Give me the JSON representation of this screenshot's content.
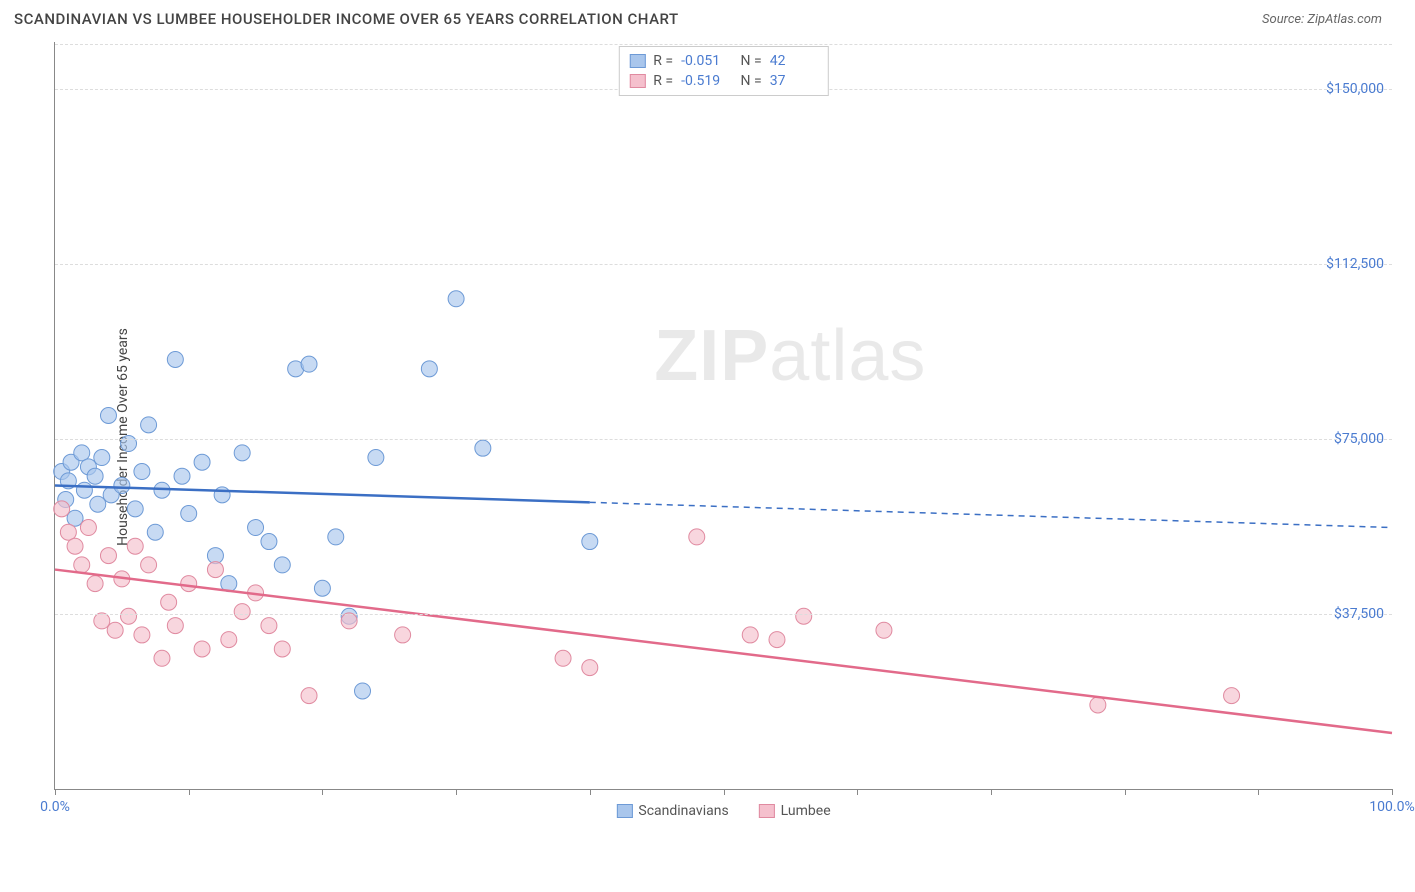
{
  "header": {
    "title": "SCANDINAVIAN VS LUMBEE HOUSEHOLDER INCOME OVER 65 YEARS CORRELATION CHART",
    "source": "Source: ZipAtlas.com"
  },
  "watermark": {
    "part1": "ZIP",
    "part2": "atlas"
  },
  "chart": {
    "type": "scatter",
    "ylabel": "Householder Income Over 65 years",
    "background_color": "#ffffff",
    "grid_color": "#dddddd",
    "axis_color": "#888888",
    "label_color": "#4a7bd0",
    "title_fontsize": 15,
    "label_fontsize": 14,
    "xlim": [
      0,
      100
    ],
    "ylim": [
      0,
      160000
    ],
    "xtick_positions": [
      0,
      10,
      20,
      30,
      40,
      50,
      60,
      70,
      80,
      90,
      100
    ],
    "xtick_labels_shown": {
      "0": "0.0%",
      "100": "100.0%"
    },
    "ytick_positions": [
      37500,
      75000,
      112500,
      150000
    ],
    "ytick_labels": [
      "$37,500",
      "$75,000",
      "$112,500",
      "$150,000"
    ],
    "series": [
      {
        "name": "Scandinavians",
        "marker_fill": "#a9c6ec",
        "marker_stroke": "#6d9ad6",
        "marker_opacity": 0.65,
        "marker_radius": 8,
        "line_color": "#3b6fc4",
        "line_width": 2.5,
        "r_value": "-0.051",
        "n_value": "42",
        "regression": {
          "x1_pct": 0,
          "y1": 65000,
          "x2_pct": 100,
          "y2": 56000,
          "solid_until_pct": 40
        },
        "points": [
          [
            0.5,
            68000
          ],
          [
            0.8,
            62000
          ],
          [
            1.0,
            66000
          ],
          [
            1.2,
            70000
          ],
          [
            1.5,
            58000
          ],
          [
            2.0,
            72000
          ],
          [
            2.2,
            64000
          ],
          [
            2.5,
            69000
          ],
          [
            3.0,
            67000
          ],
          [
            3.2,
            61000
          ],
          [
            3.5,
            71000
          ],
          [
            4.0,
            80000
          ],
          [
            4.2,
            63000
          ],
          [
            5.0,
            65000
          ],
          [
            5.5,
            74000
          ],
          [
            6.0,
            60000
          ],
          [
            6.5,
            68000
          ],
          [
            7.0,
            78000
          ],
          [
            7.5,
            55000
          ],
          [
            8.0,
            64000
          ],
          [
            9.0,
            92000
          ],
          [
            9.5,
            67000
          ],
          [
            10.0,
            59000
          ],
          [
            11.0,
            70000
          ],
          [
            12.0,
            50000
          ],
          [
            12.5,
            63000
          ],
          [
            13.0,
            44000
          ],
          [
            14.0,
            72000
          ],
          [
            15.0,
            56000
          ],
          [
            16.0,
            53000
          ],
          [
            17.0,
            48000
          ],
          [
            18.0,
            90000
          ],
          [
            19.0,
            91000
          ],
          [
            20.0,
            43000
          ],
          [
            21.0,
            54000
          ],
          [
            22.0,
            37000
          ],
          [
            23.0,
            21000
          ],
          [
            24.0,
            71000
          ],
          [
            28.0,
            90000
          ],
          [
            30.0,
            105000
          ],
          [
            32.0,
            73000
          ],
          [
            40.0,
            53000
          ]
        ]
      },
      {
        "name": "Lumbee",
        "marker_fill": "#f5c0cd",
        "marker_stroke": "#e08aa0",
        "marker_opacity": 0.65,
        "marker_radius": 8,
        "line_color": "#e26a8a",
        "line_width": 2.5,
        "r_value": "-0.519",
        "n_value": "37",
        "regression": {
          "x1_pct": 0,
          "y1": 47000,
          "x2_pct": 100,
          "y2": 12000,
          "solid_until_pct": 100
        },
        "points": [
          [
            0.5,
            60000
          ],
          [
            1.0,
            55000
          ],
          [
            1.5,
            52000
          ],
          [
            2.0,
            48000
          ],
          [
            2.5,
            56000
          ],
          [
            3.0,
            44000
          ],
          [
            3.5,
            36000
          ],
          [
            4.0,
            50000
          ],
          [
            4.5,
            34000
          ],
          [
            5.0,
            45000
          ],
          [
            5.5,
            37000
          ],
          [
            6.0,
            52000
          ],
          [
            6.5,
            33000
          ],
          [
            7.0,
            48000
          ],
          [
            8.0,
            28000
          ],
          [
            8.5,
            40000
          ],
          [
            9.0,
            35000
          ],
          [
            10.0,
            44000
          ],
          [
            11.0,
            30000
          ],
          [
            12.0,
            47000
          ],
          [
            13.0,
            32000
          ],
          [
            14.0,
            38000
          ],
          [
            15.0,
            42000
          ],
          [
            16.0,
            35000
          ],
          [
            17.0,
            30000
          ],
          [
            19.0,
            20000
          ],
          [
            22.0,
            36000
          ],
          [
            26.0,
            33000
          ],
          [
            38.0,
            28000
          ],
          [
            40.0,
            26000
          ],
          [
            48.0,
            54000
          ],
          [
            52.0,
            33000
          ],
          [
            54.0,
            32000
          ],
          [
            56.0,
            37000
          ],
          [
            62.0,
            34000
          ],
          [
            78.0,
            18000
          ],
          [
            88.0,
            20000
          ]
        ]
      }
    ],
    "legend_bottom": [
      {
        "label": "Scandinavians",
        "fill": "#a9c6ec",
        "stroke": "#6d9ad6"
      },
      {
        "label": "Lumbee",
        "fill": "#f5c0cd",
        "stroke": "#e08aa0"
      }
    ]
  }
}
